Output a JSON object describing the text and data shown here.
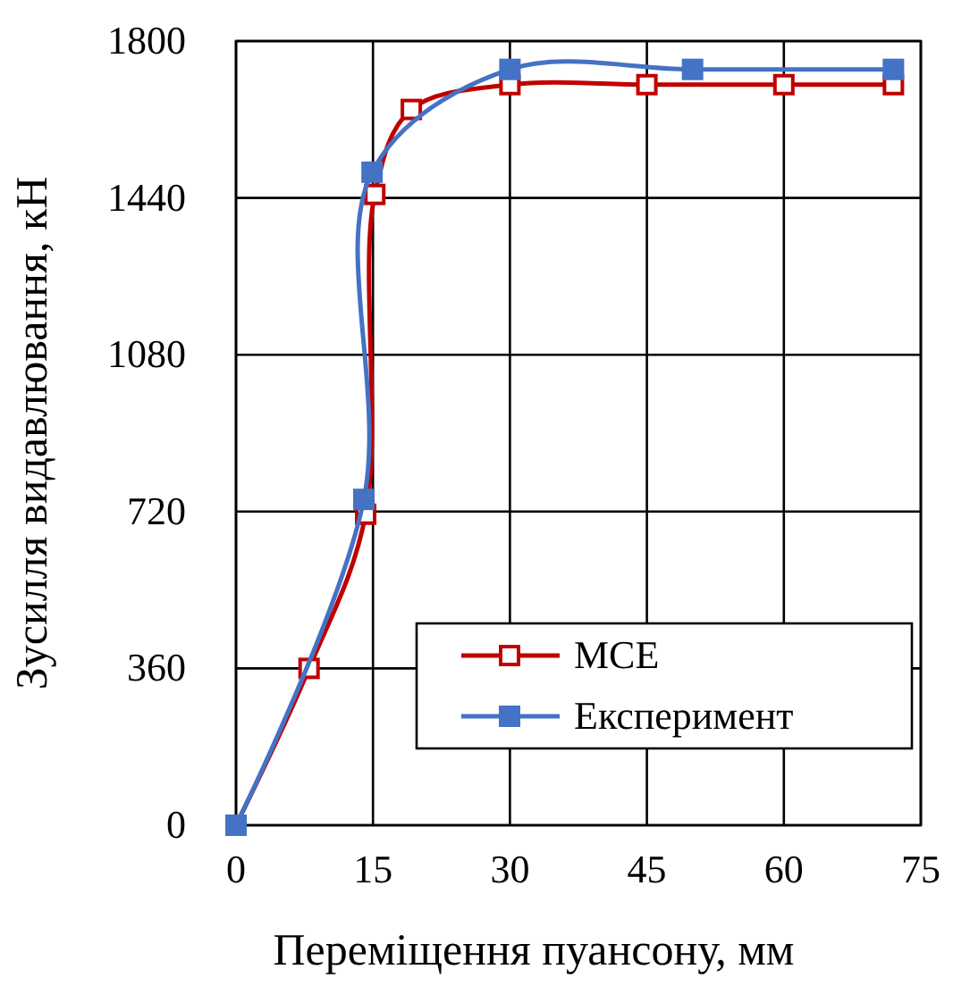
{
  "chart_data": {
    "type": "line",
    "xlabel": "Переміщення пуансону, мм",
    "ylabel": "Зусилля видавлювання, кН",
    "xlim": [
      0,
      75
    ],
    "xticks": [
      0,
      15,
      30,
      45,
      60,
      75
    ],
    "ylim": [
      0,
      1800
    ],
    "yticks": [
      0,
      360,
      720,
      1080,
      1440,
      1800
    ],
    "grid": true,
    "legend": "bottom right",
    "marker": "square",
    "line_style": "solid",
    "series": [
      {
        "name": "МСЕ",
        "color": "#c00000",
        "x": [
          0,
          8,
          14.2,
          15.2,
          19.2,
          30,
          45,
          60,
          72
        ],
        "values": [
          0,
          360,
          714,
          1448,
          1643,
          1700,
          1700,
          1700,
          1700
        ]
      },
      {
        "name": "Експеримент",
        "color": "#4472c4",
        "x": [
          0,
          14,
          14.9,
          30,
          50,
          72
        ],
        "values": [
          0,
          748,
          1499,
          1735,
          1735,
          1735
        ]
      }
    ]
  }
}
